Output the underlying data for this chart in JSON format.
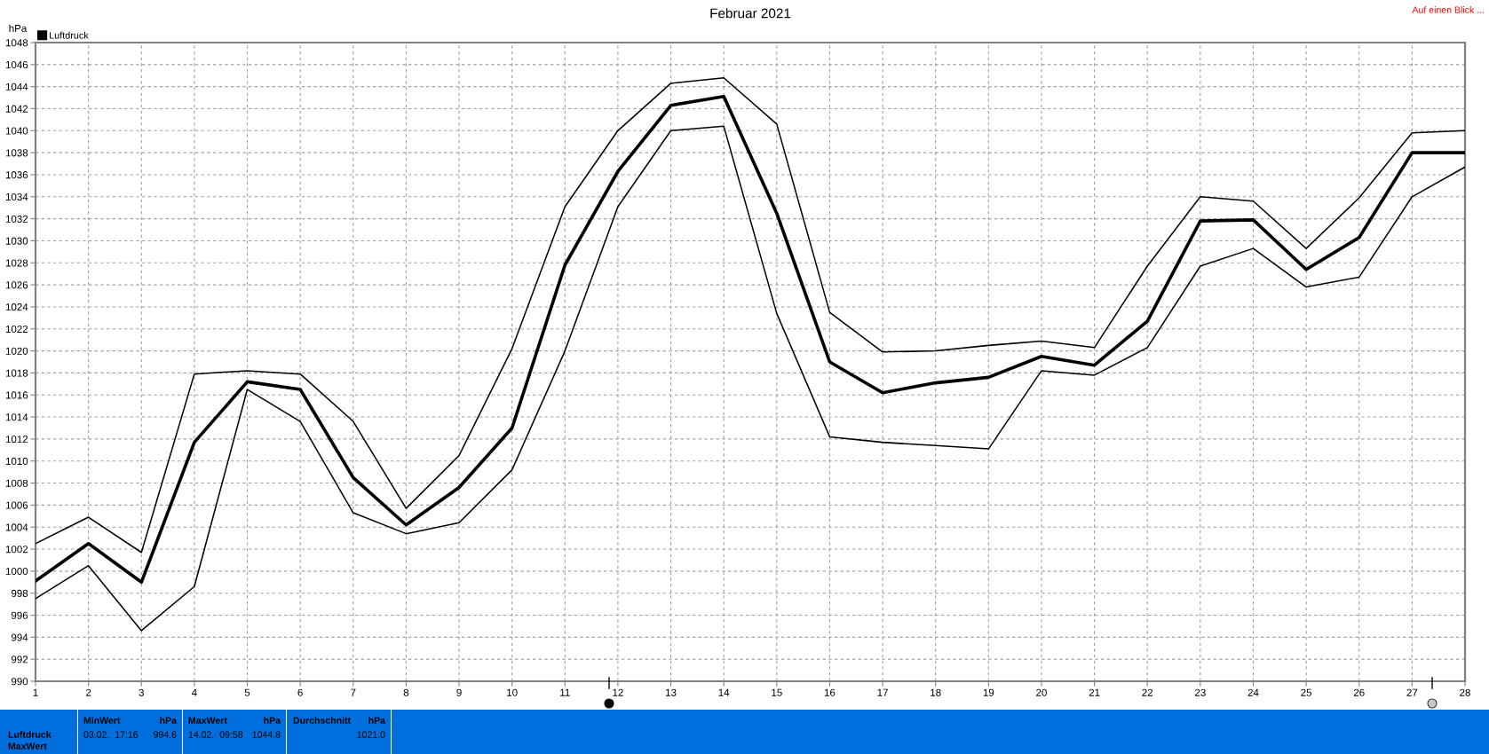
{
  "chart_data": {
    "type": "line",
    "title": "Februar 2021",
    "ylabel": "hPa",
    "x": [
      1,
      2,
      3,
      4,
      5,
      6,
      7,
      8,
      9,
      10,
      11,
      12,
      13,
      14,
      15,
      16,
      17,
      18,
      19,
      20,
      21,
      22,
      23,
      24,
      25,
      26,
      27,
      28
    ],
    "series": [
      {
        "name": "Luftdruck",
        "color": "#000000",
        "values": [
          999.1,
          1002.5,
          999.0,
          1011.7,
          1017.2,
          1016.5,
          1008.5,
          1004.2,
          1007.6,
          1013.0,
          1027.8,
          1036.3,
          1042.3,
          1043.1,
          1032.5,
          1019.0,
          1016.2,
          1017.1,
          1017.6,
          1019.5,
          1018.7,
          1022.7,
          1031.8,
          1031.9,
          1027.4,
          1030.3,
          1038.0,
          1038.0
        ]
      },
      {
        "color": "#000000",
        "values": [
          1002.5,
          1004.9,
          1001.7,
          1017.9,
          1018.2,
          1017.9,
          1013.6,
          1005.7,
          1010.5,
          1020.2,
          1033.1,
          1040.0,
          1044.3,
          1044.8,
          1040.6,
          1023.5,
          1019.9,
          1020.0,
          1020.5,
          1020.9,
          1020.3,
          1027.7,
          1034.0,
          1033.6,
          1029.3,
          1033.9,
          1039.8,
          1040.0
        ]
      },
      {
        "color": "#000000",
        "values": [
          997.5,
          1000.5,
          994.6,
          998.6,
          1016.5,
          1013.6,
          1005.3,
          1003.4,
          1004.4,
          1009.2,
          1020.0,
          1033.1,
          1040.0,
          1040.4,
          1023.4,
          1012.2,
          1011.7,
          1011.4,
          1011.1,
          1018.2,
          1017.8,
          1020.3,
          1027.7,
          1029.3,
          1025.8,
          1026.7,
          1034.0,
          1036.7
        ]
      }
    ],
    "xlim": [
      1,
      28
    ],
    "xticks": [
      1,
      2,
      3,
      4,
      5,
      6,
      7,
      8,
      9,
      10,
      11,
      12,
      13,
      14,
      15,
      16,
      17,
      18,
      19,
      20,
      21,
      22,
      23,
      24,
      25,
      26,
      27,
      28
    ],
    "ylim": [
      990,
      1048
    ],
    "yticks": [
      990,
      992,
      994,
      996,
      998,
      1000,
      1002,
      1004,
      1006,
      1008,
      1010,
      1012,
      1014,
      1016,
      1018,
      1020,
      1022,
      1024,
      1026,
      1028,
      1030,
      1032,
      1034,
      1036,
      1038,
      1040,
      1042,
      1044,
      1046,
      1048
    ],
    "grid": true,
    "legend": "top left",
    "annotations": [
      "Luftdruck",
      "MaxWert",
      "MinWert",
      "hPa",
      "03.02.  17:16",
      "994.6",
      "MaxWert",
      "hPa",
      "14.02.  09:58",
      "1044.8",
      "Durchschnitt",
      "hPa",
      "1021.0",
      "Auf einen Blick ..."
    ]
  }
}
